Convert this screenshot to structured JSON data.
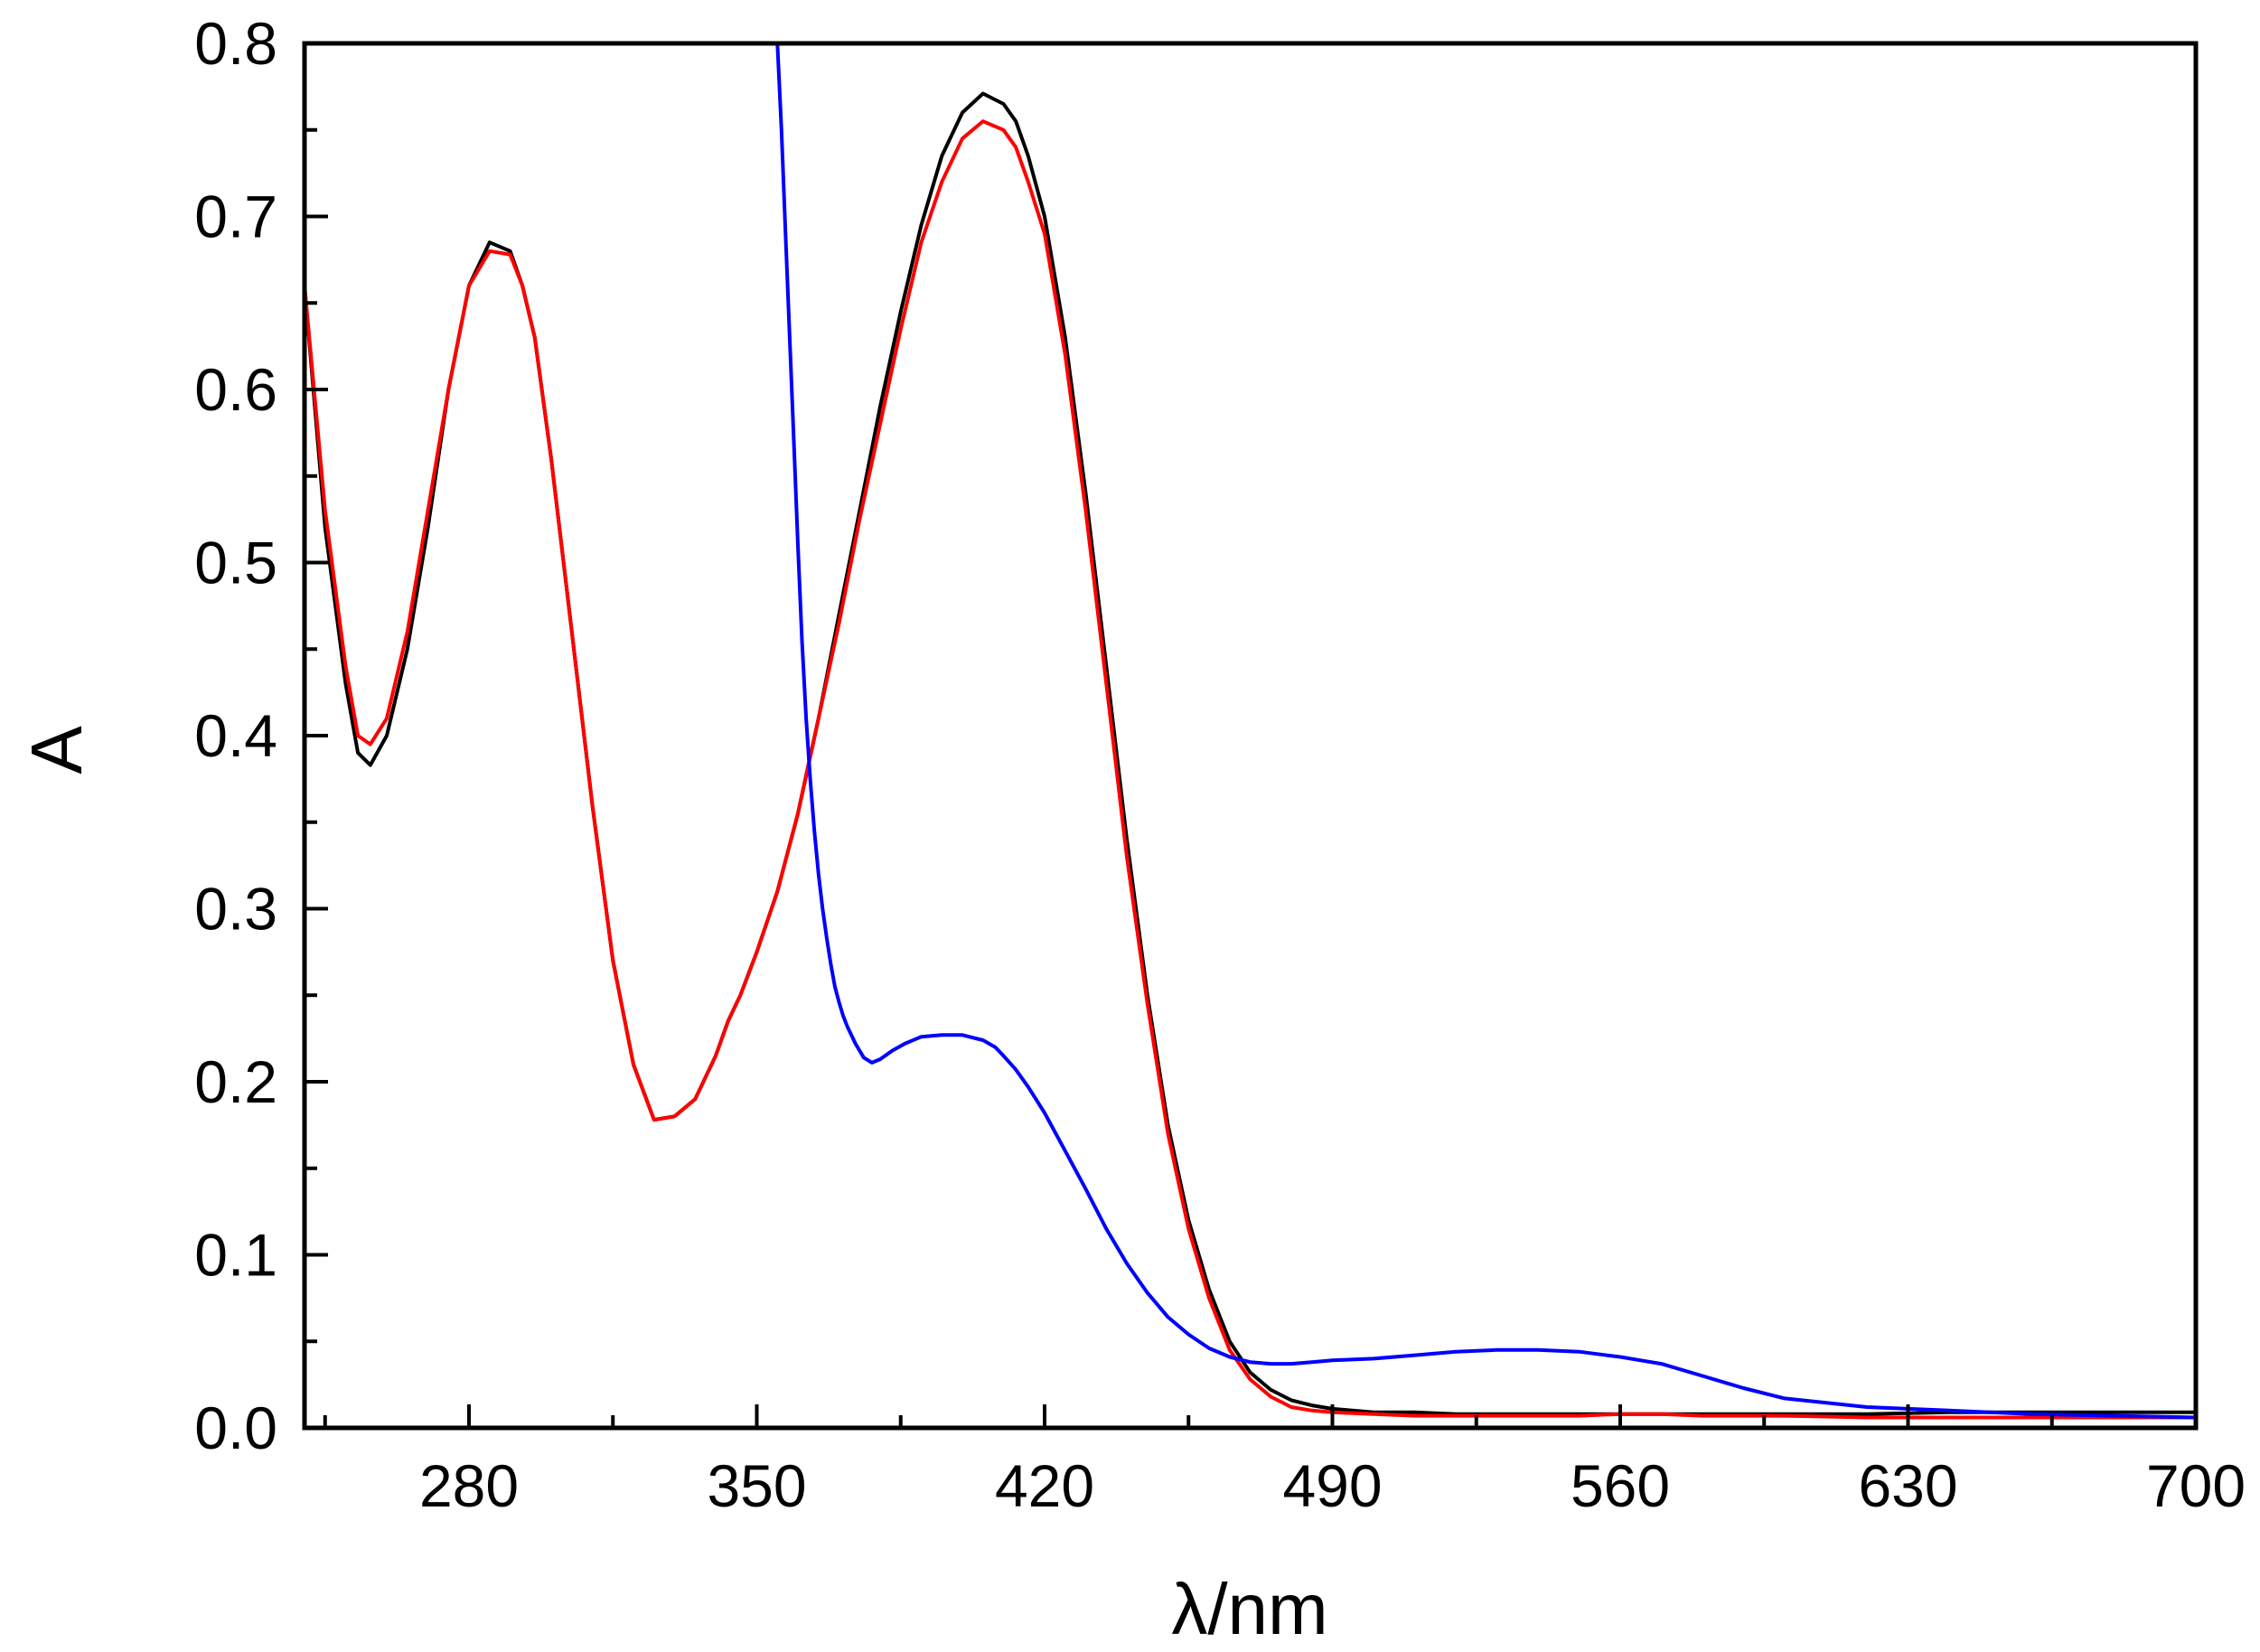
{
  "chart_data": {
    "type": "line",
    "title": "",
    "xlabel": "λ/nm",
    "ylabel": "A",
    "xlim": [
      240,
      700
    ],
    "ylim": [
      0.0,
      0.8
    ],
    "grid": false,
    "legend": "none",
    "x_major_ticks": [
      280,
      350,
      420,
      490,
      560,
      630,
      700
    ],
    "x_tick_labels": [
      "280",
      "350",
      "420",
      "490",
      "560",
      "630",
      "700"
    ],
    "x_minor_ticks": [
      245,
      315,
      385,
      455,
      525,
      595,
      665
    ],
    "y_major_ticks": [
      0.0,
      0.1,
      0.2,
      0.3,
      0.4,
      0.5,
      0.6,
      0.7,
      0.8
    ],
    "y_tick_labels": [
      "0.0",
      "0.1",
      "0.2",
      "0.3",
      "0.4",
      "0.5",
      "0.6",
      "0.7",
      "0.8"
    ],
    "y_minor_ticks": [
      0.05,
      0.15,
      0.25,
      0.35,
      0.45,
      0.55,
      0.65,
      0.75
    ],
    "series": [
      {
        "name": "black",
        "color": "#000000",
        "x": [
          240,
          245,
          250,
          253,
          256,
          260,
          265,
          270,
          275,
          280,
          285,
          290,
          293,
          296,
          300,
          305,
          310,
          315,
          320,
          325,
          330,
          335,
          340,
          343,
          346,
          350,
          355,
          360,
          365,
          370,
          375,
          380,
          385,
          390,
          395,
          400,
          405,
          410,
          413,
          416,
          420,
          425,
          430,
          435,
          440,
          445,
          450,
          455,
          460,
          465,
          470,
          475,
          480,
          485,
          490,
          500,
          510,
          520,
          530,
          540,
          550,
          560,
          570,
          580,
          590,
          600,
          620,
          640,
          660,
          680,
          700
        ],
        "y": [
          0.66,
          0.52,
          0.43,
          0.39,
          0.383,
          0.4,
          0.45,
          0.52,
          0.6,
          0.66,
          0.685,
          0.68,
          0.66,
          0.63,
          0.56,
          0.46,
          0.36,
          0.27,
          0.21,
          0.178,
          0.18,
          0.19,
          0.215,
          0.235,
          0.25,
          0.275,
          0.31,
          0.355,
          0.41,
          0.47,
          0.53,
          0.59,
          0.645,
          0.695,
          0.735,
          0.76,
          0.771,
          0.765,
          0.755,
          0.735,
          0.7,
          0.63,
          0.54,
          0.44,
          0.34,
          0.25,
          0.175,
          0.12,
          0.08,
          0.05,
          0.032,
          0.022,
          0.016,
          0.013,
          0.011,
          0.009,
          0.009,
          0.008,
          0.008,
          0.008,
          0.008,
          0.008,
          0.008,
          0.008,
          0.008,
          0.008,
          0.008,
          0.009,
          0.009,
          0.009,
          0.009
        ]
      },
      {
        "name": "red",
        "color": "#ff0000",
        "x": [
          240,
          245,
          250,
          253,
          256,
          260,
          265,
          270,
          275,
          280,
          285,
          290,
          293,
          296,
          300,
          305,
          310,
          315,
          320,
          325,
          330,
          335,
          340,
          343,
          346,
          350,
          355,
          360,
          365,
          370,
          375,
          380,
          385,
          390,
          395,
          400,
          405,
          410,
          413,
          416,
          420,
          425,
          430,
          435,
          440,
          445,
          450,
          455,
          460,
          465,
          470,
          475,
          480,
          485,
          490,
          500,
          510,
          520,
          530,
          540,
          550,
          560,
          570,
          580,
          590,
          600,
          620,
          640,
          660,
          680,
          700
        ],
        "y": [
          0.66,
          0.53,
          0.44,
          0.4,
          0.395,
          0.41,
          0.46,
          0.53,
          0.6,
          0.66,
          0.68,
          0.678,
          0.66,
          0.63,
          0.56,
          0.46,
          0.36,
          0.27,
          0.21,
          0.178,
          0.18,
          0.19,
          0.215,
          0.235,
          0.25,
          0.275,
          0.31,
          0.355,
          0.41,
          0.465,
          0.525,
          0.58,
          0.635,
          0.685,
          0.72,
          0.745,
          0.755,
          0.75,
          0.74,
          0.72,
          0.69,
          0.62,
          0.53,
          0.43,
          0.33,
          0.245,
          0.17,
          0.115,
          0.075,
          0.045,
          0.028,
          0.018,
          0.012,
          0.01,
          0.009,
          0.008,
          0.007,
          0.007,
          0.007,
          0.007,
          0.007,
          0.008,
          0.008,
          0.007,
          0.007,
          0.007,
          0.006,
          0.006,
          0.006,
          0.006,
          0.006
        ]
      },
      {
        "name": "blue",
        "color": "#0000ff",
        "x": [
          354,
          355,
          356,
          357,
          358,
          359,
          360,
          361,
          362,
          363,
          364,
          365,
          366,
          367,
          368,
          369,
          370,
          371,
          372,
          374,
          376,
          378,
          380,
          383,
          386,
          390,
          395,
          400,
          405,
          408,
          410,
          413,
          416,
          420,
          425,
          430,
          435,
          440,
          445,
          450,
          455,
          460,
          465,
          470,
          475,
          480,
          485,
          490,
          500,
          510,
          520,
          530,
          540,
          550,
          560,
          565,
          570,
          580,
          590,
          600,
          620,
          640,
          660,
          680,
          700
        ],
        "y": [
          0.84,
          0.8,
          0.75,
          0.69,
          0.63,
          0.57,
          0.51,
          0.455,
          0.41,
          0.375,
          0.345,
          0.32,
          0.3,
          0.283,
          0.268,
          0.255,
          0.246,
          0.238,
          0.232,
          0.222,
          0.214,
          0.211,
          0.213,
          0.218,
          0.222,
          0.226,
          0.227,
          0.227,
          0.224,
          0.22,
          0.215,
          0.207,
          0.197,
          0.182,
          0.16,
          0.138,
          0.115,
          0.095,
          0.078,
          0.064,
          0.054,
          0.046,
          0.041,
          0.038,
          0.037,
          0.037,
          0.038,
          0.039,
          0.04,
          0.042,
          0.044,
          0.045,
          0.045,
          0.044,
          0.041,
          0.039,
          0.037,
          0.03,
          0.023,
          0.017,
          0.012,
          0.01,
          0.008,
          0.007,
          0.006
        ]
      }
    ]
  }
}
